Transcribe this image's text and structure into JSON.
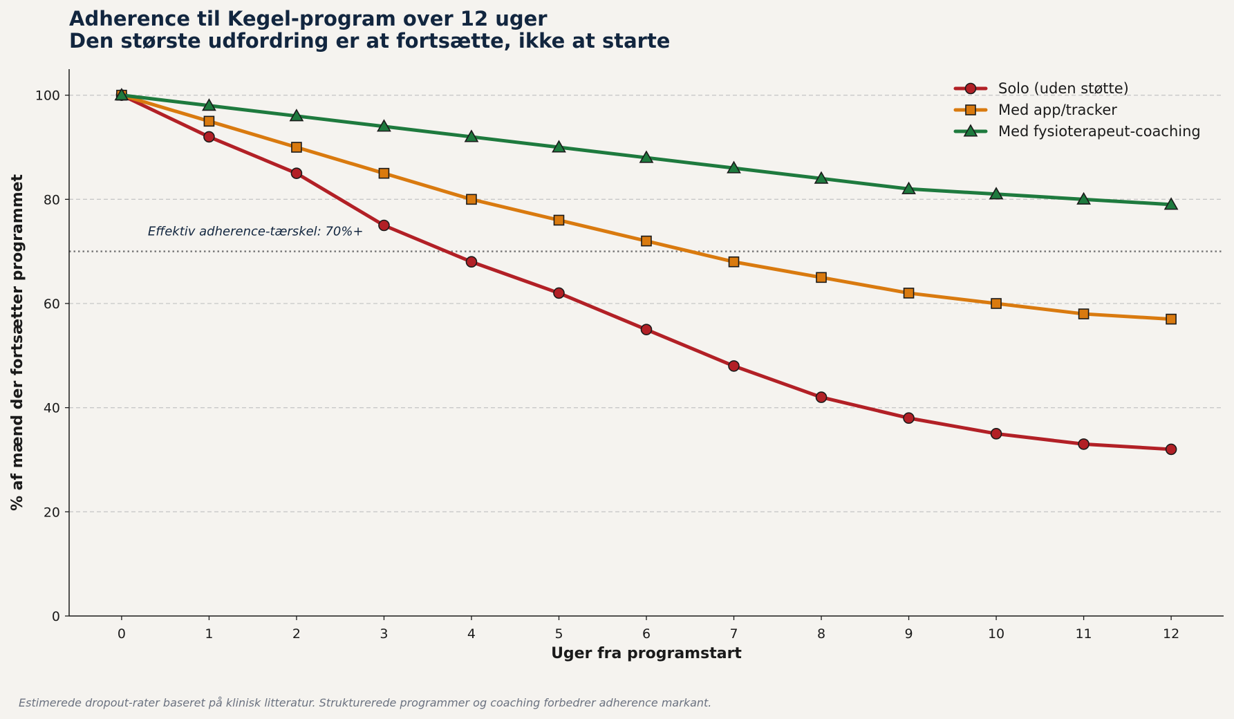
{
  "chart_data": {
    "type": "line",
    "title": "Adherence til Kegel-program over 12 uger",
    "subtitle": "Den største udfordring er at fortsætte, ikke at starte",
    "xlabel": "Uger fra programstart",
    "ylabel": "% af mænd der fortsætter programmet",
    "x": [
      0,
      1,
      2,
      3,
      4,
      5,
      6,
      7,
      8,
      9,
      10,
      11,
      12
    ],
    "xlim": [
      -0.6,
      12.6
    ],
    "ylim": [
      0,
      105
    ],
    "x_ticks": [
      "0",
      "1",
      "2",
      "3",
      "4",
      "5",
      "6",
      "7",
      "8",
      "9",
      "10",
      "11",
      "12"
    ],
    "y_ticks": [
      "0",
      "20",
      "40",
      "60",
      "80",
      "100"
    ],
    "y_tick_values": [
      0,
      20,
      40,
      60,
      80,
      100
    ],
    "grid": "y-dashed",
    "legend_position": "top-right",
    "series": [
      {
        "name": "Solo (uden støtte)",
        "color": "#b22026",
        "marker": "circle",
        "values": [
          100,
          92,
          85,
          75,
          68,
          62,
          55,
          48,
          42,
          38,
          35,
          33,
          32
        ]
      },
      {
        "name": "Med app/tracker",
        "color": "#d97a0f",
        "marker": "square",
        "values": [
          100,
          95,
          90,
          85,
          80,
          76,
          72,
          68,
          65,
          62,
          60,
          58,
          57
        ]
      },
      {
        "name": "Med fysioterapeut-coaching",
        "color": "#1e7a3e",
        "marker": "triangle",
        "values": [
          100,
          98,
          96,
          94,
          92,
          90,
          88,
          86,
          84,
          82,
          81,
          80,
          79
        ]
      }
    ],
    "threshold": {
      "value": 70,
      "label": "Effektiv adherence-tærskel: 70%+",
      "style": "dotted",
      "color": "#7a7a7a"
    }
  },
  "footnote": "Estimerede dropout-rater baseret på klinisk litteratur. Strukturerede programmer og coaching forbedrer adherence markant."
}
